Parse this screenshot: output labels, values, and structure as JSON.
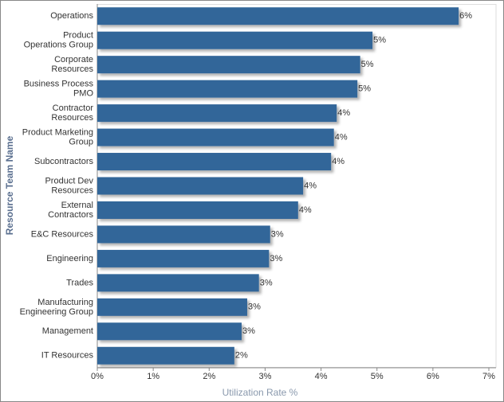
{
  "chart_data": {
    "type": "bar",
    "orientation": "horizontal",
    "x_label": "Utilization Rate %",
    "y_label": "Resource Team Name",
    "categories": [
      "Operations",
      "Product\nOperations Group",
      "Corporate\nResources",
      "Business Process\nPMO",
      "Contractor\nResources",
      "Product Marketing\nGroup",
      "Subcontractors",
      "Product Dev\nResources",
      "External\nContractors",
      "E&C Resources",
      "Engineering",
      "Trades",
      "Manufacturing\nEngineering Group",
      "Management",
      "IT Resources"
    ],
    "values": [
      6.46,
      4.92,
      4.7,
      4.65,
      4.28,
      4.23,
      4.18,
      3.68,
      3.59,
      3.09,
      3.07,
      2.89,
      2.68,
      2.58,
      2.45
    ],
    "value_labels": [
      "6%",
      "5%",
      "5%",
      "5%",
      "4%",
      "4%",
      "4%",
      "4%",
      "4%",
      "3%",
      "3%",
      "3%",
      "3%",
      "3%",
      "2%"
    ],
    "color": "#336699",
    "xlim": [
      0,
      7
    ],
    "xticks": [
      {
        "value": 0,
        "label": "0%"
      },
      {
        "value": 1,
        "label": "1%"
      },
      {
        "value": 2,
        "label": "2%"
      },
      {
        "value": 3,
        "label": "3%"
      },
      {
        "value": 4,
        "label": "4%"
      },
      {
        "value": 5,
        "label": "5%"
      },
      {
        "value": 6,
        "label": "6%"
      },
      {
        "value": 7,
        "label": "7%"
      }
    ]
  }
}
